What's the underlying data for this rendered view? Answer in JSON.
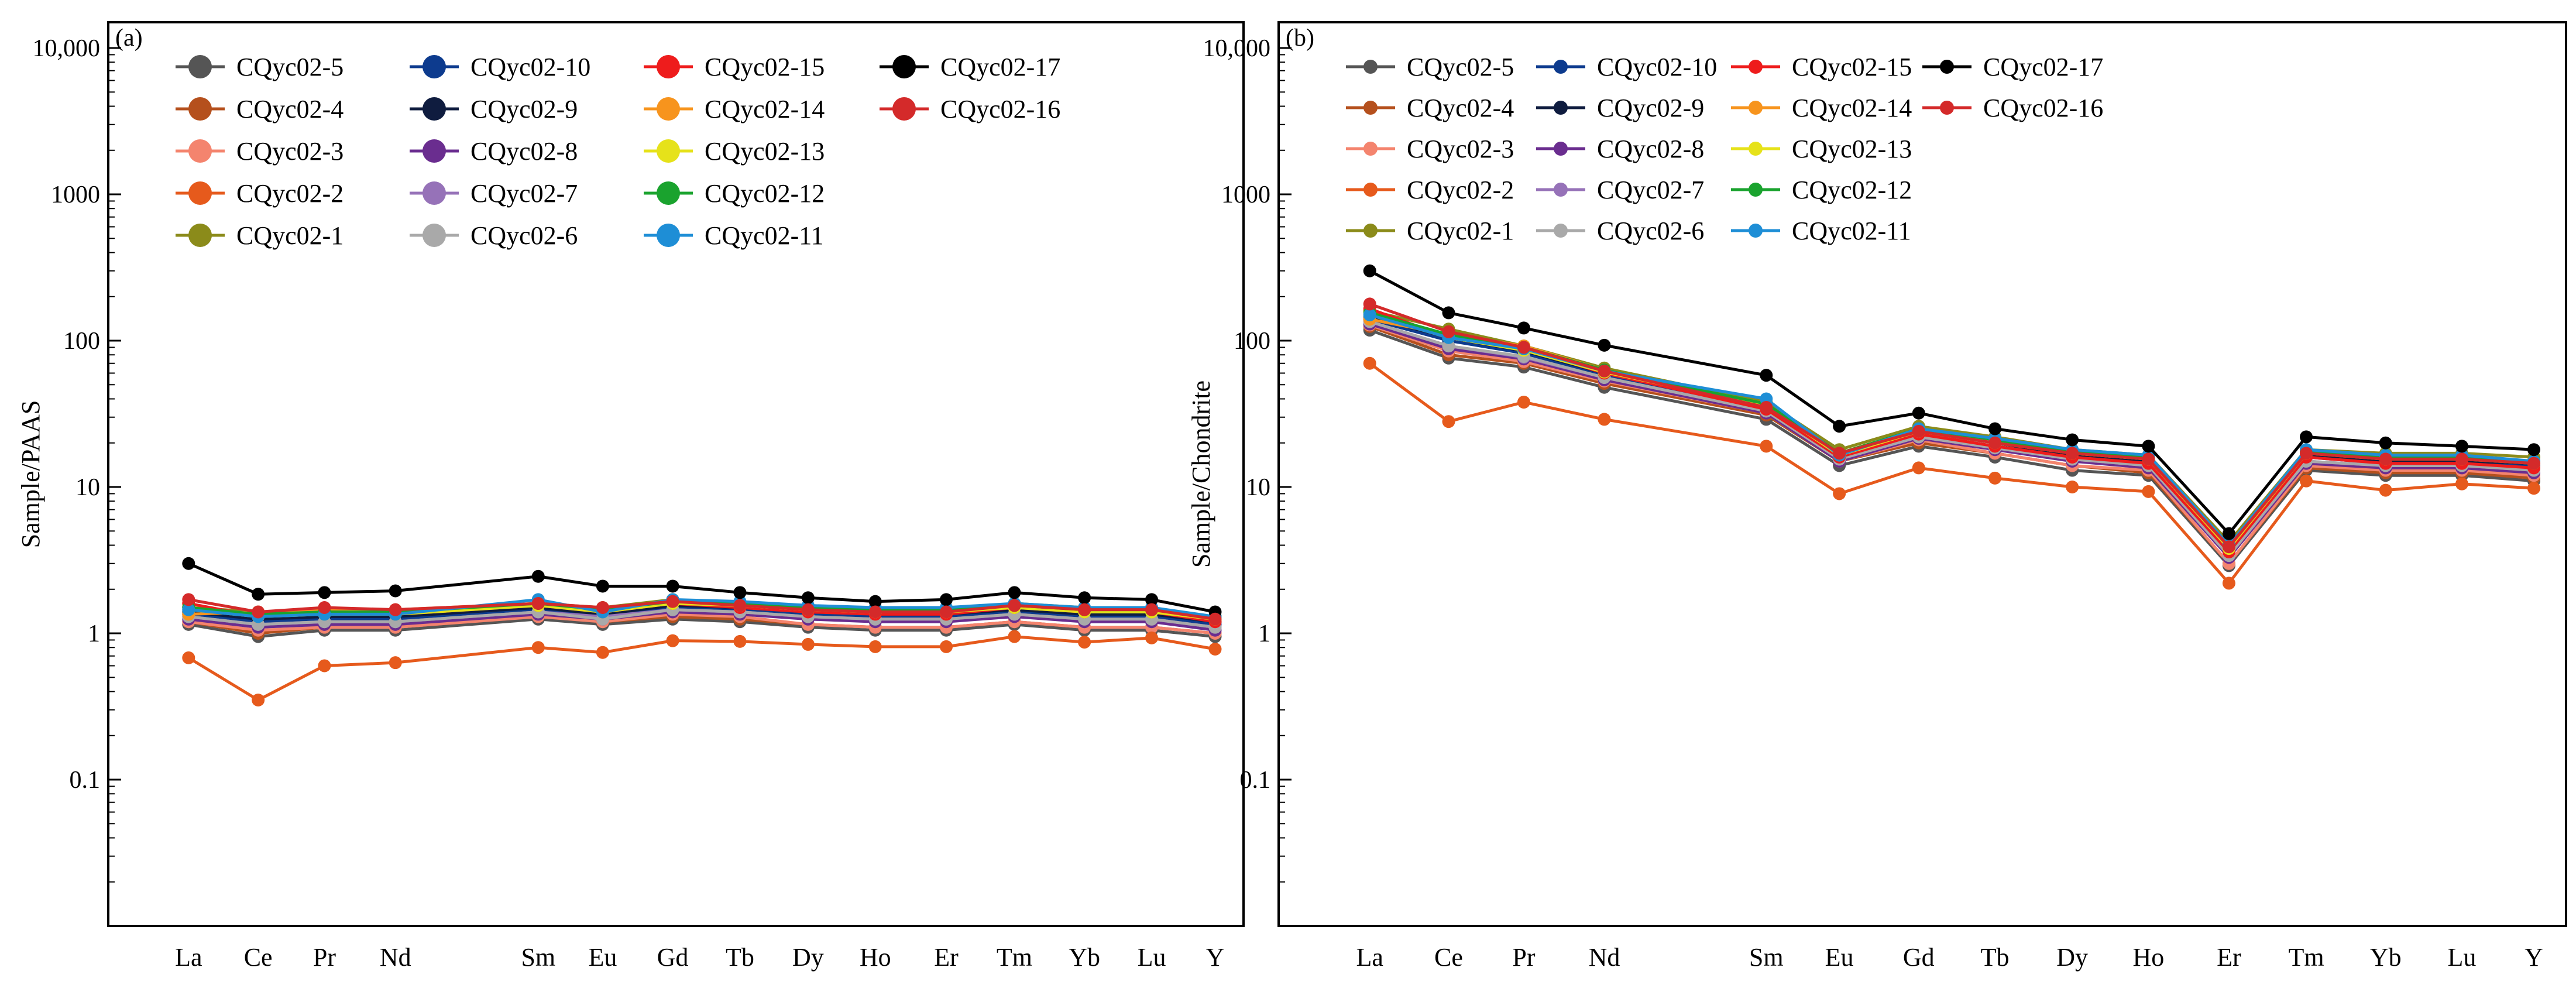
{
  "chart_data": [
    {
      "type": "line",
      "panel_label": "(a)",
      "ylabel": "Sample/PAAS",
      "xlabel": "",
      "yscale": "log",
      "ylim": [
        0.01,
        15000
      ],
      "yticks": [
        0.1,
        1,
        10,
        100,
        1000,
        10000
      ],
      "ytick_labels": [
        "0.1",
        "1",
        "10",
        "100",
        "1000",
        "10,000"
      ],
      "categories": [
        "La",
        "Ce",
        "Pr",
        "Nd",
        "Sm",
        "Eu",
        "Gd",
        "Tb",
        "Dy",
        "Ho",
        "Er",
        "Tm",
        "Yb",
        "Lu",
        "Y"
      ],
      "legend_position": "top-left",
      "series": [
        {
          "name": "CQyc02-5",
          "color": "#555555",
          "values": [
            1.15,
            0.95,
            1.05,
            1.05,
            1.25,
            1.15,
            1.25,
            1.2,
            1.1,
            1.05,
            1.05,
            1.15,
            1.05,
            1.05,
            0.95
          ]
        },
        {
          "name": "CQyc02-4",
          "color": "#b5501d",
          "values": [
            1.2,
            1.0,
            1.1,
            1.1,
            1.3,
            1.2,
            1.3,
            1.25,
            1.15,
            1.1,
            1.1,
            1.2,
            1.1,
            1.1,
            1.0
          ]
        },
        {
          "name": "CQyc02-3",
          "color": "#f4846e",
          "values": [
            1.2,
            1.05,
            1.1,
            1.1,
            1.3,
            1.2,
            1.35,
            1.3,
            1.15,
            1.1,
            1.1,
            1.2,
            1.1,
            1.1,
            1.0
          ]
        },
        {
          "name": "CQyc02-2",
          "color": "#e65a1c",
          "values": [
            0.68,
            0.35,
            0.6,
            0.63,
            0.8,
            0.74,
            0.89,
            0.88,
            0.84,
            0.81,
            0.81,
            0.95,
            0.87,
            0.93,
            0.78
          ]
        },
        {
          "name": "CQyc02-1",
          "color": "#8b8b1a",
          "values": [
            1.5,
            1.4,
            1.45,
            1.4,
            1.6,
            1.5,
            1.7,
            1.6,
            1.5,
            1.45,
            1.45,
            1.6,
            1.5,
            1.45,
            1.3
          ]
        },
        {
          "name": "CQyc02-10",
          "color": "#0d3b8e",
          "values": [
            1.35,
            1.2,
            1.25,
            1.25,
            1.45,
            1.3,
            1.5,
            1.45,
            1.35,
            1.3,
            1.3,
            1.4,
            1.3,
            1.3,
            1.15
          ]
        },
        {
          "name": "CQyc02-9",
          "color": "#0f1c3f",
          "values": [
            1.4,
            1.25,
            1.3,
            1.3,
            1.5,
            1.35,
            1.55,
            1.5,
            1.4,
            1.35,
            1.35,
            1.45,
            1.35,
            1.35,
            1.2
          ]
        },
        {
          "name": "CQyc02-8",
          "color": "#6a2d8f",
          "values": [
            1.25,
            1.1,
            1.15,
            1.15,
            1.35,
            1.25,
            1.4,
            1.35,
            1.25,
            1.2,
            1.2,
            1.3,
            1.2,
            1.2,
            1.05
          ]
        },
        {
          "name": "CQyc02-7",
          "color": "#9672b8",
          "values": [
            1.3,
            1.15,
            1.2,
            1.2,
            1.4,
            1.3,
            1.45,
            1.4,
            1.3,
            1.25,
            1.25,
            1.35,
            1.25,
            1.25,
            1.1
          ]
        },
        {
          "name": "CQyc02-6",
          "color": "#a9a9a9",
          "values": [
            1.3,
            1.15,
            1.2,
            1.2,
            1.4,
            1.25,
            1.45,
            1.4,
            1.3,
            1.25,
            1.25,
            1.35,
            1.25,
            1.25,
            1.1
          ]
        },
        {
          "name": "CQyc02-15",
          "color": "#ee1c1c",
          "values": [
            1.6,
            1.3,
            1.4,
            1.35,
            1.55,
            1.4,
            1.6,
            1.5,
            1.4,
            1.35,
            1.35,
            1.5,
            1.4,
            1.4,
            1.2
          ]
        },
        {
          "name": "CQyc02-14",
          "color": "#f7941d",
          "values": [
            1.35,
            1.4,
            1.45,
            1.45,
            1.6,
            1.45,
            1.65,
            1.55,
            1.45,
            1.4,
            1.4,
            1.55,
            1.45,
            1.4,
            1.25
          ]
        },
        {
          "name": "CQyc02-13",
          "color": "#e6e21a",
          "values": [
            1.45,
            1.3,
            1.35,
            1.35,
            1.55,
            1.4,
            1.6,
            1.55,
            1.45,
            1.4,
            1.4,
            1.5,
            1.4,
            1.4,
            1.25
          ]
        },
        {
          "name": "CQyc02-12",
          "color": "#1aa32e",
          "values": [
            1.5,
            1.35,
            1.4,
            1.4,
            1.6,
            1.45,
            1.65,
            1.6,
            1.5,
            1.45,
            1.45,
            1.55,
            1.45,
            1.45,
            1.3
          ]
        },
        {
          "name": "CQyc02-11",
          "color": "#1e8ed6",
          "values": [
            1.45,
            1.3,
            1.35,
            1.35,
            1.7,
            1.4,
            1.7,
            1.65,
            1.55,
            1.5,
            1.5,
            1.6,
            1.5,
            1.5,
            1.3
          ]
        },
        {
          "name": "CQyc02-17",
          "color": "#000000",
          "values": [
            3.0,
            1.85,
            1.9,
            1.95,
            2.45,
            2.1,
            2.1,
            1.9,
            1.75,
            1.65,
            1.7,
            1.9,
            1.75,
            1.7,
            1.4
          ]
        },
        {
          "name": "CQyc02-16",
          "color": "#d42a2a",
          "values": [
            1.7,
            1.4,
            1.5,
            1.45,
            1.6,
            1.5,
            1.65,
            1.55,
            1.45,
            1.4,
            1.4,
            1.55,
            1.45,
            1.45,
            1.25
          ]
        }
      ]
    },
    {
      "type": "line",
      "panel_label": "(b)",
      "ylabel": "Sample/Chondrite",
      "xlabel": "",
      "yscale": "log",
      "ylim": [
        0.01,
        15000
      ],
      "yticks": [
        0.1,
        1,
        10,
        100,
        1000,
        10000
      ],
      "ytick_labels": [
        "0.1",
        "1",
        "10",
        "100",
        "1000",
        "10,000"
      ],
      "categories": [
        "La",
        "Ce",
        "Pr",
        "Nd",
        "Sm",
        "Eu",
        "Gd",
        "Tb",
        "Dy",
        "Ho",
        "Er",
        "Tm",
        "Yb",
        "Lu",
        "Y"
      ],
      "legend_position": "top-left",
      "series": [
        {
          "name": "CQyc02-5",
          "color": "#555555",
          "values": [
            118,
            76,
            66,
            48,
            29,
            14,
            19,
            16,
            13,
            12,
            2.9,
            13,
            12,
            12,
            11
          ]
        },
        {
          "name": "CQyc02-4",
          "color": "#b5501d",
          "values": [
            125,
            80,
            70,
            51,
            31,
            15,
            20,
            17,
            14,
            12.5,
            3.0,
            13.5,
            12.5,
            12.5,
            11.5
          ]
        },
        {
          "name": "CQyc02-3",
          "color": "#f4846e",
          "values": [
            128,
            85,
            72,
            53,
            32,
            15,
            21,
            17,
            14,
            13,
            3.0,
            14,
            13,
            13,
            12
          ]
        },
        {
          "name": "CQyc02-2",
          "color": "#e65a1c",
          "values": [
            70,
            28,
            38,
            29,
            19,
            9,
            13.5,
            11.5,
            10,
            9.3,
            2.2,
            11,
            9.5,
            10.5,
            9.8
          ]
        },
        {
          "name": "CQyc02-1",
          "color": "#8b8b1a",
          "values": [
            160,
            120,
            92,
            65,
            38,
            18,
            26,
            22,
            18,
            16.5,
            4.2,
            18,
            17,
            17,
            16
          ]
        },
        {
          "name": "CQyc02-10",
          "color": "#0d3b8e",
          "values": [
            140,
            100,
            82,
            58,
            34,
            16,
            23,
            19,
            16,
            14.5,
            3.6,
            16,
            14.5,
            14.5,
            14
          ]
        },
        {
          "name": "CQyc02-9",
          "color": "#0f1c3f",
          "values": [
            145,
            105,
            85,
            60,
            35,
            16.5,
            24,
            20,
            16.5,
            15,
            3.8,
            16.5,
            15,
            15,
            14.5
          ]
        },
        {
          "name": "CQyc02-8",
          "color": "#6a2d8f",
          "values": [
            130,
            88,
            75,
            54,
            32,
            15,
            21.5,
            18,
            15,
            13.5,
            3.3,
            14.5,
            13.5,
            13.5,
            12.5
          ]
        },
        {
          "name": "CQyc02-7",
          "color": "#9672b8",
          "values": [
            135,
            92,
            77,
            56,
            33,
            15.5,
            22,
            18.5,
            15.5,
            14,
            3.4,
            15,
            14,
            14,
            13
          ]
        },
        {
          "name": "CQyc02-6",
          "color": "#a9a9a9",
          "values": [
            135,
            92,
            78,
            56,
            33,
            15.5,
            22,
            18.5,
            15.5,
            14,
            3.4,
            15,
            14,
            14,
            13
          ]
        },
        {
          "name": "CQyc02-15",
          "color": "#ee1c1c",
          "values": [
            165,
            105,
            88,
            60,
            34,
            16,
            23,
            19,
            16,
            14.5,
            3.6,
            16,
            14.5,
            14.5,
            13.5
          ]
        },
        {
          "name": "CQyc02-14",
          "color": "#f7941d",
          "values": [
            140,
            110,
            92,
            63,
            37,
            17,
            25,
            21,
            17,
            15.5,
            3.9,
            17,
            16,
            16,
            15
          ]
        },
        {
          "name": "CQyc02-13",
          "color": "#e6e21a",
          "values": [
            150,
            105,
            86,
            61,
            36,
            16.5,
            24,
            20,
            17,
            15.5,
            3.8,
            17,
            15.5,
            15.5,
            14.5
          ]
        },
        {
          "name": "CQyc02-12",
          "color": "#1aa32e",
          "values": [
            155,
            110,
            90,
            63,
            37,
            17,
            25,
            21,
            17.5,
            16,
            4.0,
            17.5,
            16,
            16,
            15
          ]
        },
        {
          "name": "CQyc02-11",
          "color": "#1e8ed6",
          "values": [
            150,
            105,
            88,
            62,
            40,
            16.5,
            25,
            21.5,
            18,
            16.5,
            4.0,
            18,
            16.5,
            16.5,
            15
          ]
        },
        {
          "name": "CQyc02-17",
          "color": "#000000",
          "values": [
            300,
            155,
            122,
            93,
            58,
            26,
            32,
            25,
            21,
            19,
            4.8,
            22,
            20,
            19,
            18
          ]
        },
        {
          "name": "CQyc02-16",
          "color": "#d42a2a",
          "values": [
            178,
            115,
            90,
            62,
            35,
            17,
            24,
            20,
            17,
            15.5,
            3.9,
            17,
            15.5,
            15.5,
            14.5
          ]
        }
      ]
    }
  ]
}
